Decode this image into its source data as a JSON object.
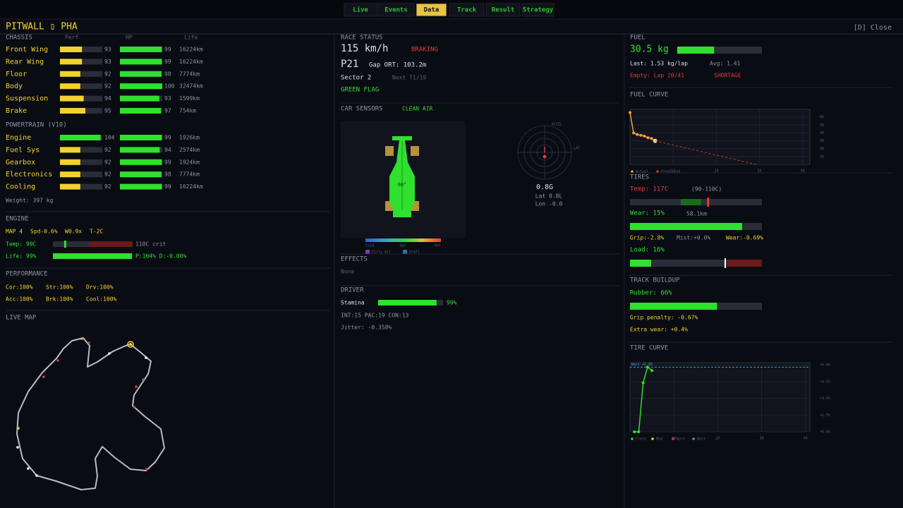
{
  "nav": {
    "tabs": [
      "Live",
      "Events",
      "Data",
      "Track",
      "Result",
      "Strategy"
    ],
    "active": 2
  },
  "header": {
    "title": "PITWALL ▯ PHA",
    "close": "[D] Close"
  },
  "chassis": {
    "title": "CHASSIS",
    "columns": [
      "Perf",
      "HP",
      "Life"
    ],
    "rows": [
      {
        "name": "Front Wing",
        "perf": 93,
        "hp": 99,
        "life": "16224km"
      },
      {
        "name": "Rear Wing",
        "perf": 93,
        "hp": 99,
        "life": "16224km"
      },
      {
        "name": "Floor",
        "perf": 92,
        "hp": 98,
        "life": "7774km"
      },
      {
        "name": "Body",
        "perf": 92,
        "hp": 100,
        "life": "32474km"
      },
      {
        "name": "Suspension",
        "perf": 94,
        "hp": 93,
        "life": "1599km"
      },
      {
        "name": "Brake",
        "perf": 95,
        "hp": 97,
        "life": "754km"
      }
    ]
  },
  "powertrain": {
    "title": "POWERTRAIN (V10)",
    "rows": [
      {
        "name": "Engine",
        "perf": 104,
        "hp": 99,
        "life": "1926km"
      },
      {
        "name": "Fuel Sys",
        "perf": 92,
        "hp": 94,
        "life": "2574km"
      },
      {
        "name": "Gearbox",
        "perf": 92,
        "hp": 99,
        "life": "1924km"
      },
      {
        "name": "Electronics",
        "perf": 92,
        "hp": 98,
        "life": "7774km"
      },
      {
        "name": "Cooling",
        "perf": 92,
        "hp": 99,
        "life": "16224km"
      }
    ]
  },
  "weight": "Weight: 397 kg",
  "engine": {
    "title": "ENGINE",
    "settings": [
      "MAP 4",
      "Spd-0.6%",
      "W0.9x",
      "T-2C"
    ],
    "temp_label": "Temp: 90C",
    "temp": 90,
    "crit_label": "110C crit",
    "crit": 110,
    "life_label": "Life: 99%",
    "life": 99,
    "pd": "P:104% D:-0.00%"
  },
  "performance": {
    "title": "PERFORMANCE",
    "rows": [
      [
        "Cor:100%",
        "Str:100%",
        "Drv:100%"
      ],
      [
        "Acc:100%",
        "Brk:100%",
        "Cool:100%"
      ]
    ]
  },
  "live_map": {
    "title": "LIVE MAP"
  },
  "race_status": {
    "title": "RACE STATUS",
    "speed": "115 km/h",
    "state": "BRAKING",
    "position": "P21",
    "gap": "Gap ORT: 103.2m",
    "sector": "Sector 2",
    "next": "Next T1/19",
    "flag": "GREEN FLAG"
  },
  "car_sensors": {
    "title": "CAR SENSORS",
    "air": "CLEAN AIR",
    "body_temp": "90°",
    "scale": [
      "Cold",
      "Opt",
      "Hot"
    ],
    "legend": [
      "Dirty Air",
      "Draft"
    ],
    "g_axes": [
      "ACCEL",
      "LAT"
    ],
    "g": "0.8G",
    "lat": "Lat 0.8L",
    "lon": "Lon -0.0"
  },
  "effects": {
    "title": "EFFECTS",
    "text": "None"
  },
  "driver": {
    "title": "DRIVER",
    "stamina_label": "Stamina",
    "stamina": 90,
    "stamina_text": "90%",
    "stats": "INT:15 PAC:19 CON:13",
    "jitter": "Jitter: -0.358%"
  },
  "fuel": {
    "title": "FUEL",
    "amount_label": "30.5 kg",
    "amount": 30.5,
    "last": "Last: 1.53 kg/lap",
    "avg": "Avg: 1.41",
    "empty": "Empty: Lap 20/41",
    "warning": "SHORTAGE"
  },
  "fuel_curve": {
    "title": "FUEL CURVE",
    "type": "line",
    "xlim": [
      0,
      50
    ],
    "ylim": [
      0,
      70
    ],
    "xticks": [
      12,
      24,
      36,
      48
    ],
    "yticks": [
      10,
      20,
      30,
      40,
      50,
      60
    ],
    "series": [
      {
        "name": "Actual",
        "color": "#f39c3c",
        "x": [
          0,
          1,
          2,
          3,
          4,
          5,
          6,
          7
        ],
        "values": [
          66,
          40,
          38,
          37,
          36,
          34,
          33,
          30
        ]
      },
      {
        "name": "Predicted",
        "color": "#c0392b",
        "x": [
          7,
          35
        ],
        "values": [
          30,
          0
        ]
      }
    ]
  },
  "tires": {
    "title": "TIRES",
    "temp_label": "Temp: 117C",
    "temp": 117,
    "range": "(90-110C)",
    "wear_label": "Wear: 15%",
    "wear": 15,
    "distance": "58.1km",
    "effects": [
      "Grip:-2.8%",
      "Mist:+0.0%",
      "Wear:-0.69%"
    ],
    "load_label": "Load: 16%",
    "load": 16
  },
  "track_buildup": {
    "title": "TRACK BUILDUP",
    "rubber_label": "Rubber: 66%",
    "rubber": 66,
    "grip_penalty": "Grip penalty: -0.67%",
    "extra_wear": "Extra wear: +0.4%"
  },
  "tire_curve": {
    "title": "TIRE CURVE",
    "type": "line",
    "xlim": [
      0,
      41
    ],
    "ylim": [
      0,
      6.2
    ],
    "xticks": [
      10,
      20,
      30,
      40
    ],
    "yticks": [
      {
        "value": 0,
        "label": "+0.0%"
      },
      {
        "value": 1.5,
        "label": "+1.5%"
      },
      {
        "value": 3,
        "label": "+3.0%"
      },
      {
        "value": 4.5,
        "label": "+4.5%"
      },
      {
        "value": 6,
        "label": "+6.0%"
      }
    ],
    "best": 5.8,
    "best_label": "Best +5.8%",
    "series": [
      {
        "name": "Fresh",
        "color": "#2fe02f",
        "x": [
          1,
          2,
          3,
          4,
          5
        ],
        "values": [
          0,
          0,
          4.4,
          5.8,
          5.5
        ]
      }
    ],
    "legend": [
      {
        "name": "Mid",
        "color": "#f2d22e"
      },
      {
        "name": "Worn",
        "color": "#e23b3b"
      },
      {
        "name": "Best",
        "color": "#3aa0c8"
      }
    ]
  }
}
